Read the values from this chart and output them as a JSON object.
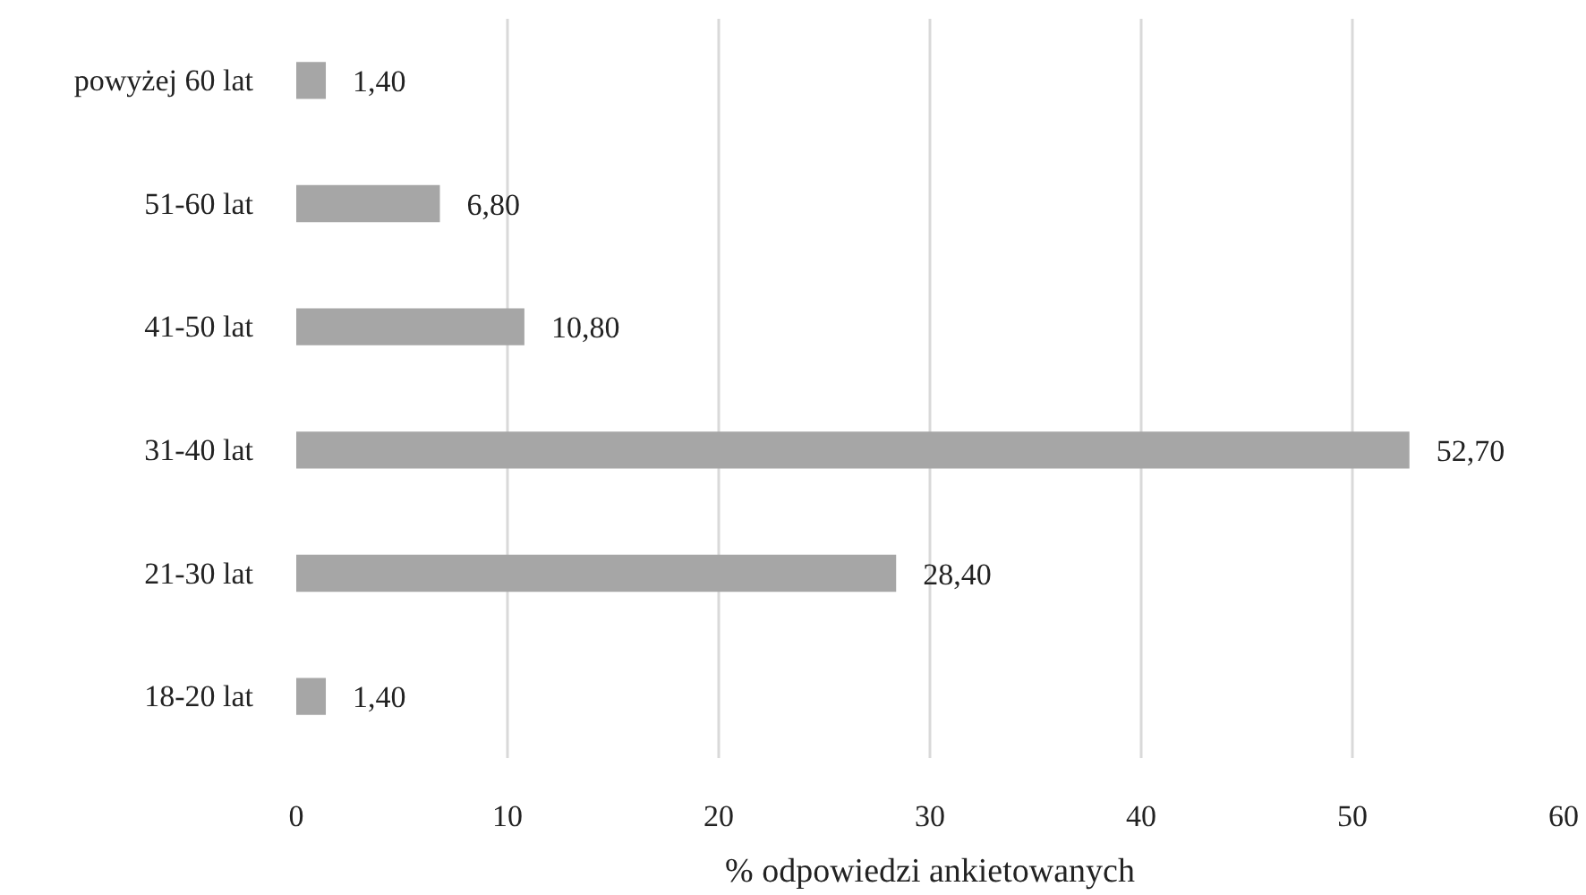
{
  "chart_data": {
    "type": "bar",
    "orientation": "horizontal",
    "categories": [
      "powyżej 60 lat",
      "51-60 lat",
      "41-50 lat",
      "31-40 lat",
      "21-30 lat",
      "18-20 lat"
    ],
    "values": [
      1.4,
      6.8,
      10.8,
      52.7,
      28.4,
      1.4
    ],
    "value_labels": [
      "1,40",
      "6,80",
      "10,80",
      "52,70",
      "28,40",
      "1,40"
    ],
    "color": "#a6a6a6",
    "xlabel": "% odpowiedzi ankietowanych",
    "xlim": [
      0,
      60
    ],
    "xticks": [
      0,
      10,
      20,
      30,
      40,
      50,
      60
    ],
    "grid": "x"
  }
}
